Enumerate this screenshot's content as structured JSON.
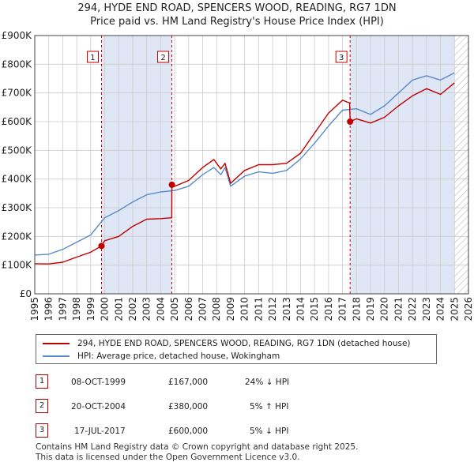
{
  "title_line1": "294, HYDE END ROAD, SPENCERS WOOD, READING, RG7 1DN",
  "title_line2": "Price paid vs. HM Land Registry's House Price Index (HPI)",
  "colors": {
    "red": "#c00000",
    "blue": "#5b8bc9",
    "shade": "#dfe6f5",
    "grid": "#cccccc"
  },
  "chart_data": {
    "type": "line",
    "xlim": [
      1995,
      2026
    ],
    "ylim": [
      0,
      900000
    ],
    "y_ticks": [
      0,
      100000,
      200000,
      300000,
      400000,
      500000,
      600000,
      700000,
      800000,
      900000
    ],
    "y_tick_labels": [
      "£0",
      "£100K",
      "£200K",
      "£300K",
      "£400K",
      "£500K",
      "£600K",
      "£700K",
      "£800K",
      "£900K"
    ],
    "x_ticks": [
      "1995",
      "1996",
      "1997",
      "1998",
      "1999",
      "2000",
      "2001",
      "2002",
      "2003",
      "2004",
      "2005",
      "2006",
      "2007",
      "2008",
      "2009",
      "2010",
      "2011",
      "2012",
      "2013",
      "2014",
      "2015",
      "2016",
      "2017",
      "2018",
      "2019",
      "2020",
      "2021",
      "2022",
      "2023",
      "2024",
      "2025",
      "2026"
    ],
    "shaded_ranges": [
      [
        1999.77,
        2004.8
      ],
      [
        2017.54,
        2025.0
      ]
    ],
    "hatched_from": 2025.0,
    "series": [
      {
        "name": "294, HYDE END ROAD, SPENCERS WOOD, READING, RG7 1DN (detached house)",
        "color": "#c00000",
        "points": [
          [
            1995,
            105000
          ],
          [
            1996,
            104000
          ],
          [
            1997,
            110000
          ],
          [
            1998,
            128000
          ],
          [
            1999,
            145000
          ],
          [
            1999.77,
            167000
          ],
          [
            2000,
            185000
          ],
          [
            2001,
            200000
          ],
          [
            2002,
            235000
          ],
          [
            2003,
            260000
          ],
          [
            2004,
            262000
          ],
          [
            2004.79,
            265000
          ],
          [
            2004.8,
            380000
          ],
          [
            2005,
            375000
          ],
          [
            2006,
            395000
          ],
          [
            2007,
            440000
          ],
          [
            2007.8,
            468000
          ],
          [
            2008.3,
            435000
          ],
          [
            2008.6,
            455000
          ],
          [
            2009,
            385000
          ],
          [
            2010,
            430000
          ],
          [
            2011,
            450000
          ],
          [
            2012,
            450000
          ],
          [
            2013,
            455000
          ],
          [
            2014,
            490000
          ],
          [
            2015,
            560000
          ],
          [
            2016,
            630000
          ],
          [
            2017,
            675000
          ],
          [
            2017.5,
            665000
          ],
          [
            2017.54,
            600000
          ],
          [
            2018,
            610000
          ],
          [
            2019,
            595000
          ],
          [
            2020,
            615000
          ],
          [
            2021,
            655000
          ],
          [
            2022,
            690000
          ],
          [
            2023,
            715000
          ],
          [
            2024,
            695000
          ],
          [
            2025,
            735000
          ]
        ]
      },
      {
        "name": "HPI: Average price, detached house, Wokingham",
        "color": "#5b8bc9",
        "points": [
          [
            1995,
            135000
          ],
          [
            1996,
            138000
          ],
          [
            1997,
            155000
          ],
          [
            1998,
            180000
          ],
          [
            1999,
            205000
          ],
          [
            2000,
            265000
          ],
          [
            2001,
            290000
          ],
          [
            2002,
            320000
          ],
          [
            2003,
            345000
          ],
          [
            2004,
            355000
          ],
          [
            2005,
            360000
          ],
          [
            2006,
            375000
          ],
          [
            2007,
            415000
          ],
          [
            2007.8,
            440000
          ],
          [
            2008.3,
            415000
          ],
          [
            2008.6,
            440000
          ],
          [
            2009,
            375000
          ],
          [
            2010,
            410000
          ],
          [
            2011,
            425000
          ],
          [
            2012,
            420000
          ],
          [
            2013,
            430000
          ],
          [
            2014,
            470000
          ],
          [
            2015,
            525000
          ],
          [
            2016,
            585000
          ],
          [
            2017,
            640000
          ],
          [
            2018,
            645000
          ],
          [
            2019,
            625000
          ],
          [
            2020,
            655000
          ],
          [
            2021,
            700000
          ],
          [
            2022,
            745000
          ],
          [
            2023,
            760000
          ],
          [
            2024,
            745000
          ],
          [
            2025,
            770000
          ]
        ]
      }
    ],
    "sales": [
      {
        "label": "1",
        "x": 1999.77,
        "price": 167000
      },
      {
        "label": "2",
        "x": 2004.8,
        "price": 380000
      },
      {
        "label": "3",
        "x": 2017.54,
        "price": 600000
      }
    ]
  },
  "legend": {
    "red_label": "294, HYDE END ROAD, SPENCERS WOOD, READING, RG7 1DN (detached house)",
    "blue_label": "HPI: Average price, detached house, Wokingham"
  },
  "transactions": [
    {
      "num": "1",
      "date": "08-OCT-1999",
      "price": "£167,000",
      "hpi": "24% ↓ HPI"
    },
    {
      "num": "2",
      "date": "20-OCT-2004",
      "price": "£380,000",
      "hpi": "5% ↑ HPI"
    },
    {
      "num": "3",
      "date": "17-JUL-2017",
      "price": "£600,000",
      "hpi": "5% ↓ HPI"
    }
  ],
  "footer_line1": "Contains HM Land Registry data © Crown copyright and database right 2025.",
  "footer_line2": "This data is licensed under the Open Government Licence v3.0."
}
